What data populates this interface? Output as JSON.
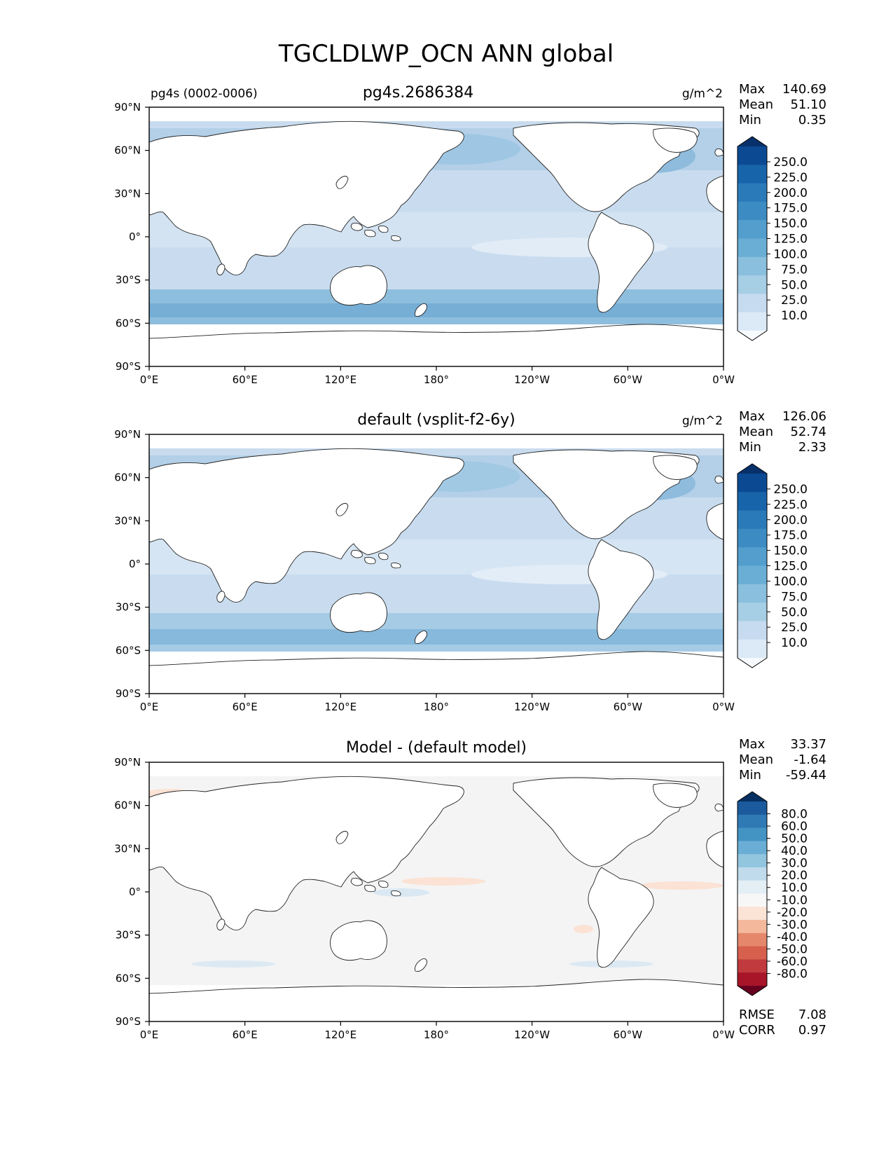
{
  "figure": {
    "title": "TGCLDLWP_OCN ANN global"
  },
  "lat_ticks": [
    "90°N",
    "60°N",
    "30°N",
    "0°",
    "30°S",
    "60°S",
    "90°S"
  ],
  "lon_ticks": [
    "0°E",
    "60°E",
    "120°E",
    "180°",
    "120°W",
    "60°W",
    "0°W"
  ],
  "panels": [
    {
      "left_title": "pg4s (0002-0006)",
      "center_title": "pg4s.2686384",
      "units": "g/m^2",
      "stats": [
        {
          "label": "Max",
          "value": "140.69"
        },
        {
          "label": "Mean",
          "value": "51.10"
        },
        {
          "label": "Min",
          "value": "0.35"
        }
      ],
      "colorbar": {
        "extend": "both",
        "labels": [
          "250.0",
          "225.0",
          "200.0",
          "175.0",
          "150.0",
          "125.0",
          "100.0",
          "75.0",
          "50.0",
          "25.0",
          "10.0"
        ],
        "colors": [
          "#08306b",
          "#0b4a93",
          "#1764ab",
          "#2a7ab9",
          "#3c8cc3",
          "#539ecd",
          "#6aaed6",
          "#8abfdd",
          "#a6cee4",
          "#c6dbef",
          "#dce9f6",
          "#f7fbff"
        ]
      }
    },
    {
      "left_title": "",
      "center_title": "default (vsplit-f2-6y)",
      "units": "g/m^2",
      "stats": [
        {
          "label": "Max",
          "value": "126.06"
        },
        {
          "label": "Mean",
          "value": "52.74"
        },
        {
          "label": "Min",
          "value": "2.33"
        }
      ],
      "colorbar": {
        "extend": "both",
        "labels": [
          "250.0",
          "225.0",
          "200.0",
          "175.0",
          "150.0",
          "125.0",
          "100.0",
          "75.0",
          "50.0",
          "25.0",
          "10.0"
        ],
        "colors": [
          "#08306b",
          "#0b4a93",
          "#1764ab",
          "#2a7ab9",
          "#3c8cc3",
          "#539ecd",
          "#6aaed6",
          "#8abfdd",
          "#a6cee4",
          "#c6dbef",
          "#dce9f6",
          "#f7fbff"
        ]
      }
    },
    {
      "left_title": "",
      "center_title": "Model - (default model)",
      "units": "",
      "stats": [
        {
          "label": "Max",
          "value": "33.37"
        },
        {
          "label": "Mean",
          "value": "-1.64"
        },
        {
          "label": "Min",
          "value": "-59.44"
        }
      ],
      "extra_stats": [
        {
          "label": "RMSE",
          "value": "7.08"
        },
        {
          "label": "CORR",
          "value": "0.97"
        }
      ],
      "colorbar": {
        "extend": "both",
        "labels": [
          "80.0",
          "60.0",
          "50.0",
          "40.0",
          "30.0",
          "20.0",
          "10.0",
          "-10.0",
          "-20.0",
          "-30.0",
          "-40.0",
          "-50.0",
          "-60.0",
          "-80.0"
        ],
        "colors": [
          "#053061",
          "#1b5a9c",
          "#2f79b5",
          "#4393c3",
          "#6aaed6",
          "#92c5de",
          "#c0dbec",
          "#e3eef5",
          "#f7f7f7",
          "#fbe3d6",
          "#f4b99d",
          "#e5876b",
          "#d6604d",
          "#c03a3e",
          "#a81529",
          "#67001f"
        ]
      }
    }
  ]
}
